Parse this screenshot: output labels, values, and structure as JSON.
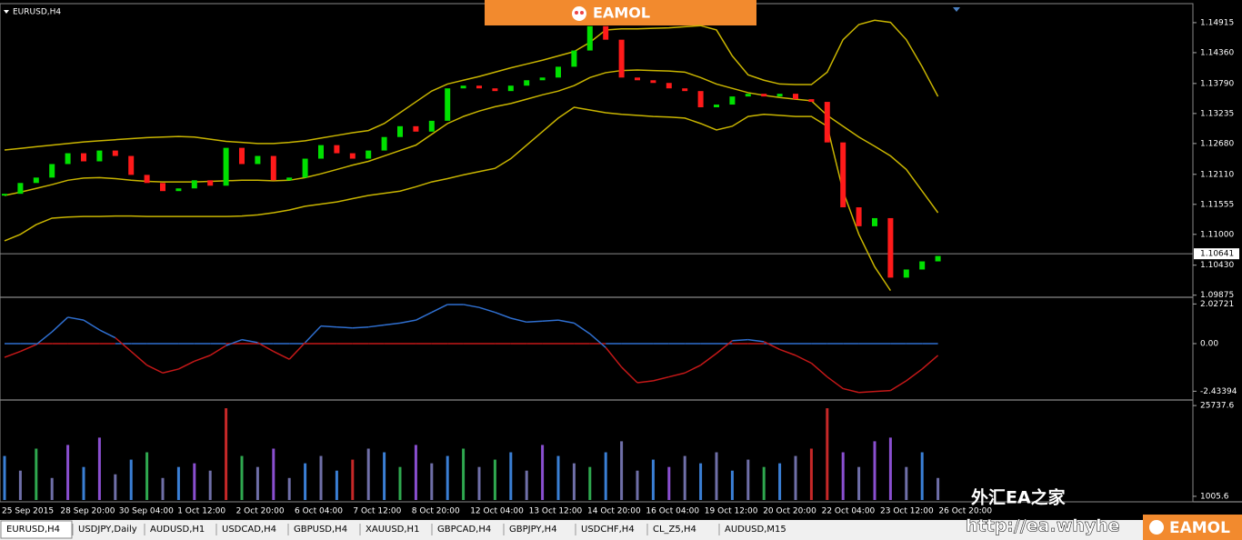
{
  "symbol": "EURUSD,H4",
  "price_axis": {
    "ylim": [
      1.0987,
      1.1525
    ],
    "ticks": [
      1.14915,
      {
        "value": 1.1436,
        "label": "1.14360"
      },
      {
        "value": 1.1379,
        "label": "1.13790"
      },
      1.13235,
      {
        "value": 1.1268,
        "label": "1.12680"
      },
      {
        "value": 1.1211,
        "label": "1.12110"
      },
      1.11555,
      {
        "value": 1.11,
        "label": "1.11000"
      },
      {
        "value": 1.1043,
        "label": "1.10430"
      },
      1.09875
    ],
    "current_price": 1.10641
  },
  "candles": {
    "up_color": "#00e000",
    "down_color": "#ff1a1a",
    "closes": [
      1.1175,
      1.1195,
      1.1205,
      1.123,
      1.125,
      1.1235,
      1.1255,
      1.1245,
      1.121,
      1.1195,
      1.118,
      1.1185,
      1.12,
      1.119,
      1.126,
      1.123,
      1.1245,
      1.12,
      1.1205,
      1.124,
      1.1265,
      1.125,
      1.124,
      1.1255,
      1.128,
      1.13,
      1.129,
      1.131,
      1.137,
      1.1375,
      1.137,
      1.1365,
      1.1375,
      1.1385,
      1.139,
      1.141,
      1.144,
      1.1485,
      1.146,
      1.139,
      1.1385,
      1.138,
      1.137,
      1.1365,
      1.1335,
      1.134,
      1.1355,
      1.136,
      1.1355,
      1.136,
      1.135,
      1.1345,
      1.127,
      1.115,
      1.1115,
      1.113,
      1.102,
      1.1035,
      1.105,
      1.106
    ]
  },
  "bands": {
    "color": "#c8b400",
    "upper": [
      1.1256,
      1.1259,
      1.1262,
      1.1265,
      1.1268,
      1.1271,
      1.1273,
      1.1275,
      1.1277,
      1.1279,
      1.128,
      1.1281,
      1.128,
      1.1276,
      1.1272,
      1.127,
      1.1268,
      1.1268,
      1.127,
      1.1273,
      1.1278,
      1.1283,
      1.1288,
      1.1292,
      1.1305,
      1.1325,
      1.1345,
      1.1365,
      1.1378,
      1.1385,
      1.1392,
      1.14,
      1.1408,
      1.1415,
      1.1422,
      1.143,
      1.1438,
      1.1455,
      1.1478,
      1.148,
      1.148,
      1.1481,
      1.1482,
      1.1484,
      1.1486,
      1.1478,
      1.143,
      1.1395,
      1.1385,
      1.1378,
      1.1377,
      1.1377,
      1.14,
      1.146,
      1.1488,
      1.1496,
      1.1492,
      1.146,
      1.141,
      1.1355
    ],
    "middle": [
      1.1172,
      1.1178,
      1.1185,
      1.1192,
      1.12,
      1.1204,
      1.1205,
      1.1203,
      1.12,
      1.1198,
      1.1197,
      1.1197,
      1.1197,
      1.1198,
      1.1199,
      1.12,
      1.12,
      1.1199,
      1.12,
      1.1205,
      1.1212,
      1.122,
      1.1228,
      1.1235,
      1.1245,
      1.1255,
      1.1265,
      1.1285,
      1.1305,
      1.1318,
      1.1328,
      1.1336,
      1.1342,
      1.135,
      1.1358,
      1.1365,
      1.1375,
      1.139,
      1.1399,
      1.1403,
      1.1404,
      1.1403,
      1.1402,
      1.14,
      1.139,
      1.1378,
      1.137,
      1.1362,
      1.1357,
      1.1353,
      1.135,
      1.1347,
      1.132,
      1.13,
      1.128,
      1.1263,
      1.1245,
      1.122,
      1.118,
      1.114
    ],
    "lower": [
      1.1088,
      1.11,
      1.1118,
      1.113,
      1.1132,
      1.1133,
      1.1133,
      1.1134,
      1.1134,
      1.1133,
      1.1133,
      1.1133,
      1.1133,
      1.1133,
      1.1133,
      1.1134,
      1.1136,
      1.114,
      1.1145,
      1.1152,
      1.1156,
      1.116,
      1.1166,
      1.1172,
      1.1176,
      1.118,
      1.1188,
      1.1197,
      1.1203,
      1.121,
      1.1216,
      1.1222,
      1.124,
      1.1265,
      1.129,
      1.1315,
      1.1335,
      1.133,
      1.1325,
      1.1322,
      1.132,
      1.1318,
      1.1317,
      1.1315,
      1.1305,
      1.1293,
      1.13,
      1.1318,
      1.1322,
      1.132,
      1.1318,
      1.1318,
      1.13,
      1.118,
      1.11,
      1.104,
      1.0996,
      null,
      null,
      null
    ]
  },
  "oscillator": {
    "ylim": [
      -2.79,
      2.23
    ],
    "ticks": [
      2.02721,
      {
        "value": 0,
        "label": "0.00"
      },
      -2.43394
    ],
    "pos_color": "#2f6fd0",
    "neg_color": "#c41818",
    "values": [
      -0.7,
      -0.4,
      -0.05,
      0.6,
      1.35,
      1.2,
      0.7,
      0.3,
      -0.4,
      -1.1,
      -1.5,
      -1.3,
      -0.9,
      -0.6,
      -0.1,
      0.2,
      0.05,
      -0.4,
      -0.8,
      0.05,
      0.9,
      0.85,
      0.8,
      0.85,
      0.95,
      1.05,
      1.2,
      1.6,
      2.0,
      2.0,
      1.85,
      1.6,
      1.3,
      1.1,
      1.15,
      1.2,
      1.05,
      0.5,
      -0.2,
      -1.2,
      -2.0,
      -1.9,
      -1.7,
      -1.5,
      -1.1,
      -0.5,
      0.15,
      0.2,
      0.1,
      -0.3,
      -0.6,
      -1.0,
      -1.7,
      -2.3,
      -2.5,
      -2.45,
      -2.4,
      -1.9,
      -1.3,
      -0.6
    ]
  },
  "volume": {
    "ylim": [
      0,
      27000
    ],
    "ticks": [
      25737.6,
      1005.6
    ],
    "values": [
      12000,
      8000,
      14000,
      6000,
      15000,
      9000,
      17000,
      7000,
      11000,
      13000,
      6000,
      9000,
      10000,
      8000,
      25000,
      12000,
      9000,
      14000,
      6000,
      10000,
      12000,
      8000,
      11000,
      14000,
      13000,
      9000,
      15000,
      10000,
      12000,
      14000,
      9000,
      11000,
      13000,
      8000,
      15000,
      12000,
      10000,
      9000,
      13000,
      16000,
      8000,
      11000,
      9000,
      12000,
      10000,
      13000,
      8000,
      11000,
      9000,
      10000,
      12000,
      14000,
      25000,
      13000,
      9000,
      16000,
      17000,
      9000,
      13000,
      6000
    ],
    "colors": [
      "#3a7fd5",
      "#6f6fa8",
      "#2fa84f",
      "#6f6fa8",
      "#8a4fd0",
      "#3a7fd5",
      "#8a4fd0",
      "#6f6fa8",
      "#3a7fd5",
      "#2fa84f",
      "#6f6fa8",
      "#3a7fd5",
      "#8a4fd0",
      "#6f6fa8",
      "#c62828",
      "#2fa84f",
      "#6f6fa8",
      "#8a4fd0",
      "#6f6fa8",
      "#3a7fd5",
      "#6f6fa8",
      "#3a7fd5",
      "#c62828",
      "#6f6fa8",
      "#3a7fd5",
      "#2fa84f",
      "#8a4fd0",
      "#6f6fa8",
      "#3a7fd5",
      "#2fa84f",
      "#6f6fa8",
      "#2fa84f",
      "#3a7fd5",
      "#6f6fa8",
      "#8a4fd0",
      "#3a7fd5",
      "#6f6fa8",
      "#2fa84f",
      "#3a7fd5",
      "#6f6fa8",
      "#6f6fa8",
      "#3a7fd5",
      "#8a4fd0",
      "#6f6fa8",
      "#3a7fd5",
      "#6f6fa8",
      "#3a7fd5",
      "#6f6fa8",
      "#2fa84f",
      "#3a7fd5",
      "#6f6fa8",
      "#c62828",
      "#c62828",
      "#8a4fd0",
      "#6f6fa8",
      "#8a4fd0",
      "#8a4fd0",
      "#6f6fa8",
      "#3a7fd5",
      "#6f6fa8"
    ]
  },
  "time_labels": [
    "25 Sep 2015",
    "28 Sep 20:00",
    "30 Sep 04:00",
    "1 Oct 12:00",
    "2 Oct 20:00",
    "6 Oct 04:00",
    "7 Oct 12:00",
    "8 Oct 20:00",
    "12 Oct 04:00",
    "13 Oct 12:00",
    "14 Oct 20:00",
    "16 Oct 04:00",
    "19 Oct 12:00",
    "20 Oct 20:00",
    "22 Oct 04:00",
    "23 Oct 12:00",
    "26 Oct 20:00"
  ],
  "tabs": [
    "EURUSD,H4",
    "USDJPY,Daily",
    "AUDUSD,H1",
    "USDCAD,H4",
    "GBPUSD,H4",
    "XAUUSD,H1",
    "GBPCAD,H4",
    "GBPJPY,H4",
    "USDCHF,H4",
    "CL_Z5,H4",
    "AUDUSD,M15"
  ],
  "watermarks": {
    "logo_top": "EAMOL",
    "site_name": "外汇EA之家",
    "url": "http://ea.whyhe",
    "logo_bottom": "EAMOL"
  }
}
